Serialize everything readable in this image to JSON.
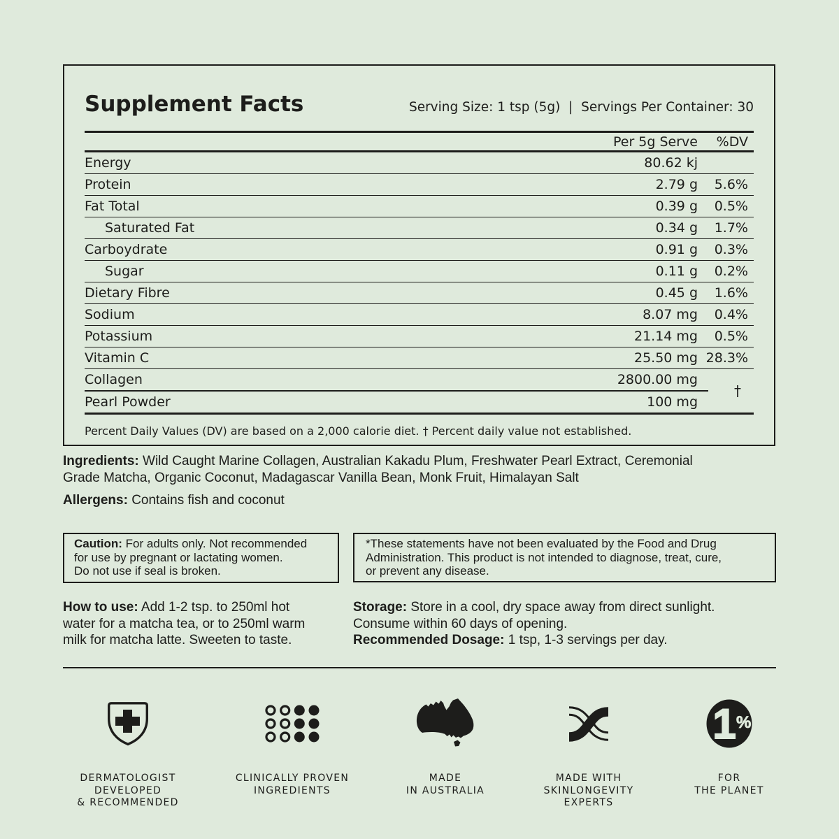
{
  "colors": {
    "background": "#dfeadc",
    "ink": "#1d1d1b"
  },
  "panel": {
    "title": "Supplement Facts",
    "serving_line": "Serving Size: 1 tsp (5g)  |  Servings Per Container: 30",
    "col_serve": "Per 5g Serve",
    "col_dv": "%DV",
    "rows": [
      {
        "label": "Energy",
        "value": "80.62 kj",
        "dv": ""
      },
      {
        "label": "Protein",
        "value": "2.79 g",
        "dv": "5.6%"
      },
      {
        "label": "Fat Total",
        "value": "0.39 g",
        "dv": "0.5%"
      },
      {
        "label": "Saturated Fat",
        "value": "0.34 g",
        "dv": "1.7%",
        "indent": true
      },
      {
        "label": "Carboydrate",
        "value": "0.91 g",
        "dv": "0.3%"
      },
      {
        "label": "Sugar",
        "value": "0.11 g",
        "dv": "0.2%",
        "indent": true
      },
      {
        "label": "Dietary Fibre",
        "value": "0.45 g",
        "dv": "1.6%"
      },
      {
        "label": "Sodium",
        "value": "8.07 mg",
        "dv": "0.4%"
      },
      {
        "label": "Potassium",
        "value": "21.14 mg",
        "dv": "0.5%"
      },
      {
        "label": "Vitamin C",
        "value": "25.50 mg",
        "dv": "28.3%"
      }
    ],
    "group_rows": [
      {
        "label": "Collagen",
        "value": "2800.00 mg"
      },
      {
        "label": "Pearl Powder",
        "value": "100 mg"
      }
    ],
    "dagger": "†",
    "footnote": "Percent Daily Values (DV) are based on a 2,000 calorie diet. † Percent daily value not established."
  },
  "ingredients": {
    "label": "Ingredients:",
    "text": " Wild Caught Marine Collagen, Australian Kakadu Plum, Freshwater Pearl Extract, Ceremonial\nGrade Matcha, Organic Coconut, Madagascar Vanilla Bean, Monk Fruit, Himalayan Salt"
  },
  "allergens": {
    "label": "Allergens:",
    "text": " Contains fish and coconut"
  },
  "caution_box": {
    "label": "Caution:",
    "text": " For adults only. Not recommended\nfor use by pregnant or lactating women.\nDo not use if seal is broken."
  },
  "fda_box": {
    "text": "*These statements have not been evaluated by the Food and Drug\nAdministration. This product is not intended to diagnose, treat, cure,\nor prevent any disease."
  },
  "usage": {
    "label": "How to use:",
    "text": " Add 1-2 tsp. to 250ml hot\nwater for a matcha tea, or to 250ml warm\nmilk for matcha latte. Sweeten to taste."
  },
  "storage": {
    "label": "Storage:",
    "text": " Store in a cool, dry space away from direct sunlight.\nConsume within 60 days of opening."
  },
  "dosage": {
    "label": "Recommended Dosage:",
    "text": " 1 tsp, 1-3 servings per day."
  },
  "badges": [
    {
      "icon": "shield-cross-icon",
      "lines": [
        "DERMATOLOGIST",
        "DEVELOPED",
        "& RECOMMENDED"
      ]
    },
    {
      "icon": "dots-grid-icon",
      "lines": [
        "CLINICALLY PROVEN",
        "INGREDIENTS"
      ]
    },
    {
      "icon": "australia-map-icon",
      "lines": [
        "MADE",
        "IN AUSTRALIA"
      ]
    },
    {
      "icon": "ribbon-x-icon",
      "lines": [
        "MADE WITH",
        "SKINLONGEVITY",
        "EXPERTS"
      ]
    },
    {
      "icon": "one-percent-icon",
      "lines": [
        "FOR",
        "THE PLANET"
      ]
    }
  ]
}
